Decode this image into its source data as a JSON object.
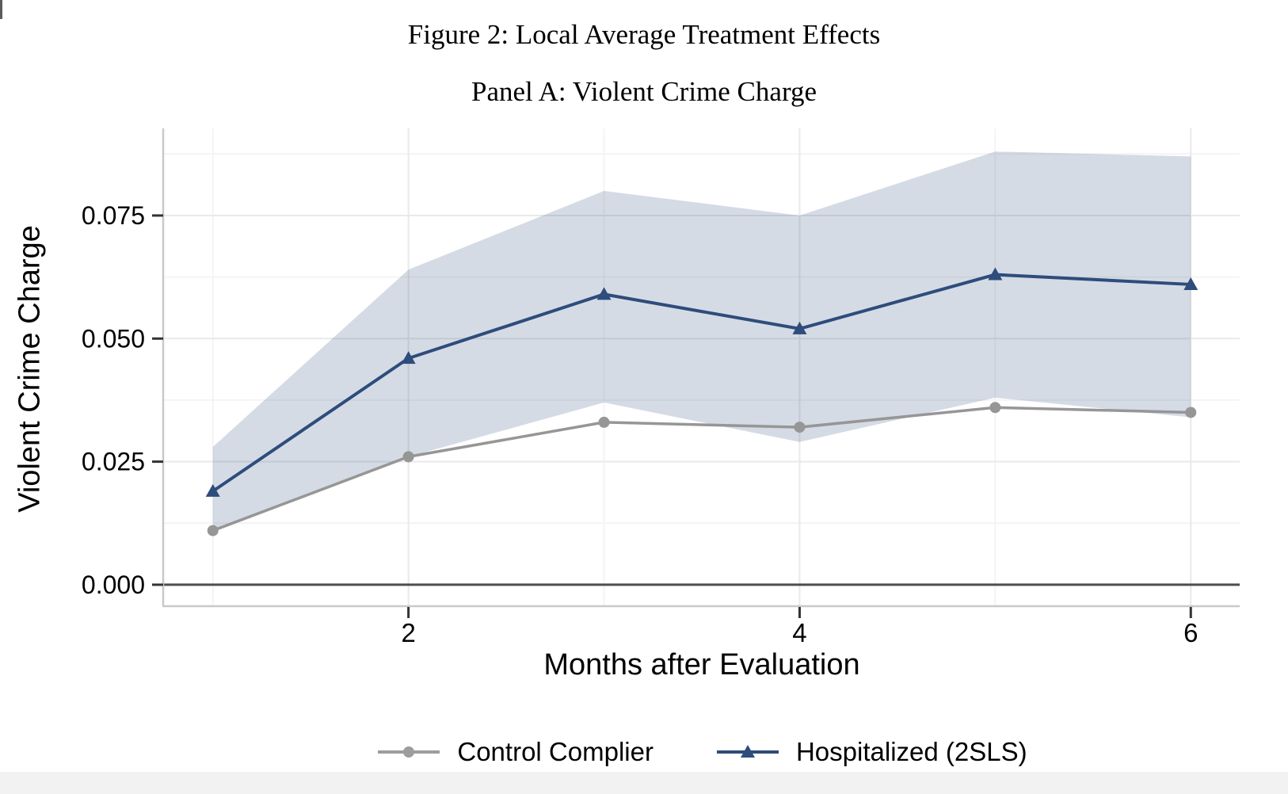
{
  "figure": {
    "title": "Figure 2: Local Average Treatment Effects",
    "panel_title": "Panel A: Violent Crime Charge"
  },
  "chart_data": {
    "type": "line",
    "x": [
      1,
      2,
      3,
      4,
      5,
      6
    ],
    "xlabel": "Months after Evaluation",
    "ylabel": "Violent Crime Charge",
    "x_tick_labels": [
      "2",
      "4",
      "6"
    ],
    "x_tick_values": [
      2,
      4,
      6
    ],
    "x_minor_values": [
      1,
      3,
      5
    ],
    "y_tick_labels": [
      "0.000",
      "0.025",
      "0.050",
      "0.075"
    ],
    "y_tick_values": [
      0,
      0.025,
      0.05,
      0.075
    ],
    "y_minor_values": [
      0.0125,
      0.0375,
      0.0625,
      0.0875
    ],
    "xlim": [
      0.75,
      6.25
    ],
    "ylim": [
      -0.0042,
      0.0927
    ],
    "grid": true,
    "legend_position": "bottom",
    "zero_line": 0,
    "series": [
      {
        "name": "Control Complier",
        "marker": "circle",
        "color": "#969696",
        "values": [
          0.011,
          0.026,
          0.033,
          0.032,
          0.036,
          0.035
        ]
      },
      {
        "name": "Hospitalized (2SLS)",
        "marker": "triangle",
        "color": "#2e4c7c",
        "values": [
          0.019,
          0.046,
          0.059,
          0.052,
          0.063,
          0.061
        ]
      }
    ],
    "confidence_band": {
      "for_series": "Hospitalized (2SLS)",
      "upper": [
        0.028,
        0.064,
        0.08,
        0.075,
        0.088,
        0.087
      ],
      "lower": [
        0.011,
        0.026,
        0.037,
        0.029,
        0.038,
        0.034
      ],
      "color": "#2e4c7c",
      "opacity": 0.2
    }
  },
  "colors": {
    "grid_major": "#e9e9e9",
    "grid_minor": "#f4f4f4",
    "axis_line": "#c9c9c9",
    "zero_line": "#4d4d4d",
    "tick_mark": "#333333",
    "text": "#000000",
    "footer_strip": "#f2f2f2"
  }
}
